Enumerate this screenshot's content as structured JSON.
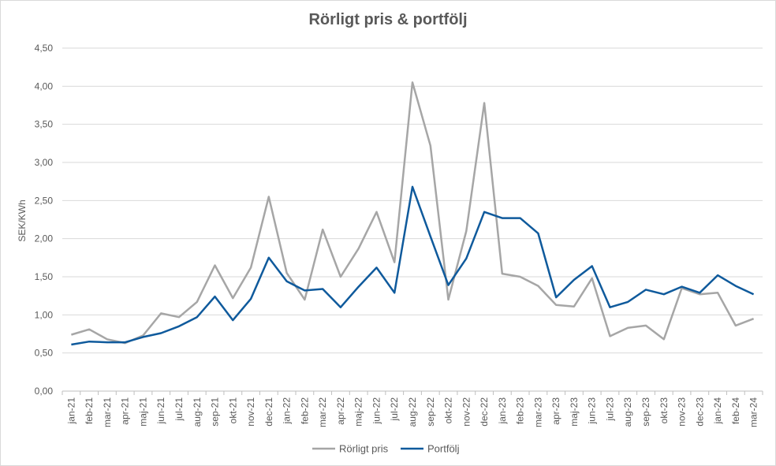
{
  "chart_data": {
    "type": "line",
    "title": "Rörligt pris & portfölj",
    "xlabel": "",
    "ylabel": "SEK/KWh",
    "ylim": [
      0,
      4.5
    ],
    "yticks": [
      "0,00",
      "0,50",
      "1,00",
      "1,50",
      "2,00",
      "2,50",
      "3,00",
      "3,50",
      "4,00",
      "4,50"
    ],
    "grid": true,
    "legend_position": "bottom",
    "categories": [
      "jan-21",
      "feb-21",
      "mar-21",
      "apr-21",
      "maj-21",
      "jun-21",
      "jul-21",
      "aug-21",
      "sep-21",
      "okt-21",
      "nov-21",
      "dec-21",
      "jan-22",
      "feb-22",
      "mar-22",
      "apr-22",
      "maj-22",
      "jun-22",
      "jul-22",
      "aug-22",
      "sep-22",
      "okt-22",
      "nov-22",
      "dec-22",
      "jan-23",
      "feb-23",
      "mar-23",
      "apr-23",
      "maj-23",
      "jun-23",
      "jul-23",
      "aug-23",
      "sep-23",
      "okt-23",
      "nov-23",
      "dec-23",
      "jan-24",
      "feb-24",
      "mar-24"
    ],
    "series": [
      {
        "name": "Rörligt pris",
        "color": "#a6a6a6",
        "values": [
          0.74,
          0.81,
          0.68,
          0.63,
          0.73,
          1.02,
          0.97,
          1.17,
          1.65,
          1.22,
          1.62,
          2.55,
          1.55,
          1.2,
          2.12,
          1.5,
          1.87,
          2.35,
          1.69,
          4.05,
          3.22,
          1.2,
          2.1,
          3.78,
          1.54,
          1.5,
          1.38,
          1.13,
          1.11,
          1.48,
          0.72,
          0.83,
          0.86,
          0.68,
          1.35,
          1.27,
          1.29,
          0.86,
          0.95
        ]
      },
      {
        "name": "Portfölj",
        "color": "#0f5a9c",
        "values": [
          0.61,
          0.65,
          0.64,
          0.64,
          0.71,
          0.76,
          0.85,
          0.97,
          1.24,
          0.93,
          1.21,
          1.75,
          1.44,
          1.32,
          1.34,
          1.1,
          1.37,
          1.62,
          1.29,
          2.68,
          2.03,
          1.39,
          1.74,
          2.35,
          2.27,
          2.27,
          2.07,
          1.23,
          1.46,
          1.64,
          1.1,
          1.17,
          1.33,
          1.27,
          1.37,
          1.29,
          1.52,
          1.38,
          1.27
        ]
      }
    ]
  }
}
